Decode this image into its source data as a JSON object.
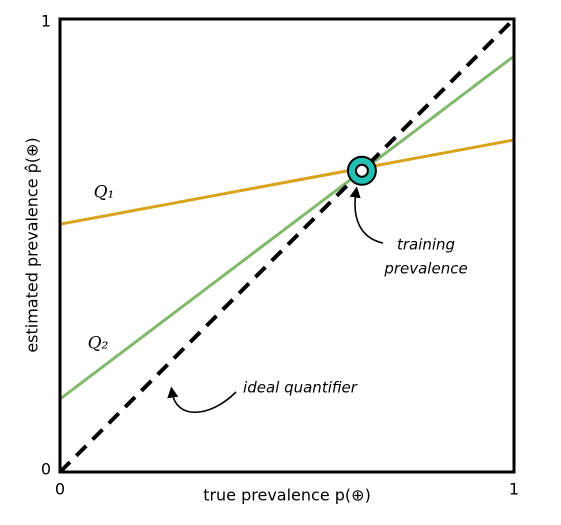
{
  "chart_data": {
    "type": "line",
    "xlabel": "true prevalence p(⊕)",
    "ylabel": "estimated prevalence p̂(⊕)",
    "xlim": [
      0,
      1
    ],
    "ylim": [
      0,
      1
    ],
    "xticks": [
      0,
      1
    ],
    "yticks": [
      0,
      1
    ],
    "grid": false,
    "series": [
      {
        "name": "Q₁",
        "color": "#d9a21b",
        "x": [
          0,
          1
        ],
        "values": [
          0.547,
          0.733
        ]
      },
      {
        "name": "Q₂",
        "color": "#82b86c",
        "x": [
          0,
          1
        ],
        "values": [
          0.161,
          0.918
        ]
      },
      {
        "name": "ideal quantifier",
        "color": "#000000",
        "dashed": true,
        "x": [
          0,
          1
        ],
        "values": [
          0,
          1
        ]
      }
    ],
    "points": [
      {
        "label_lines": [
          "training",
          "prevalence"
        ],
        "color": "#22bfb3",
        "x": 0.665,
        "y": 0.665
      }
    ]
  }
}
